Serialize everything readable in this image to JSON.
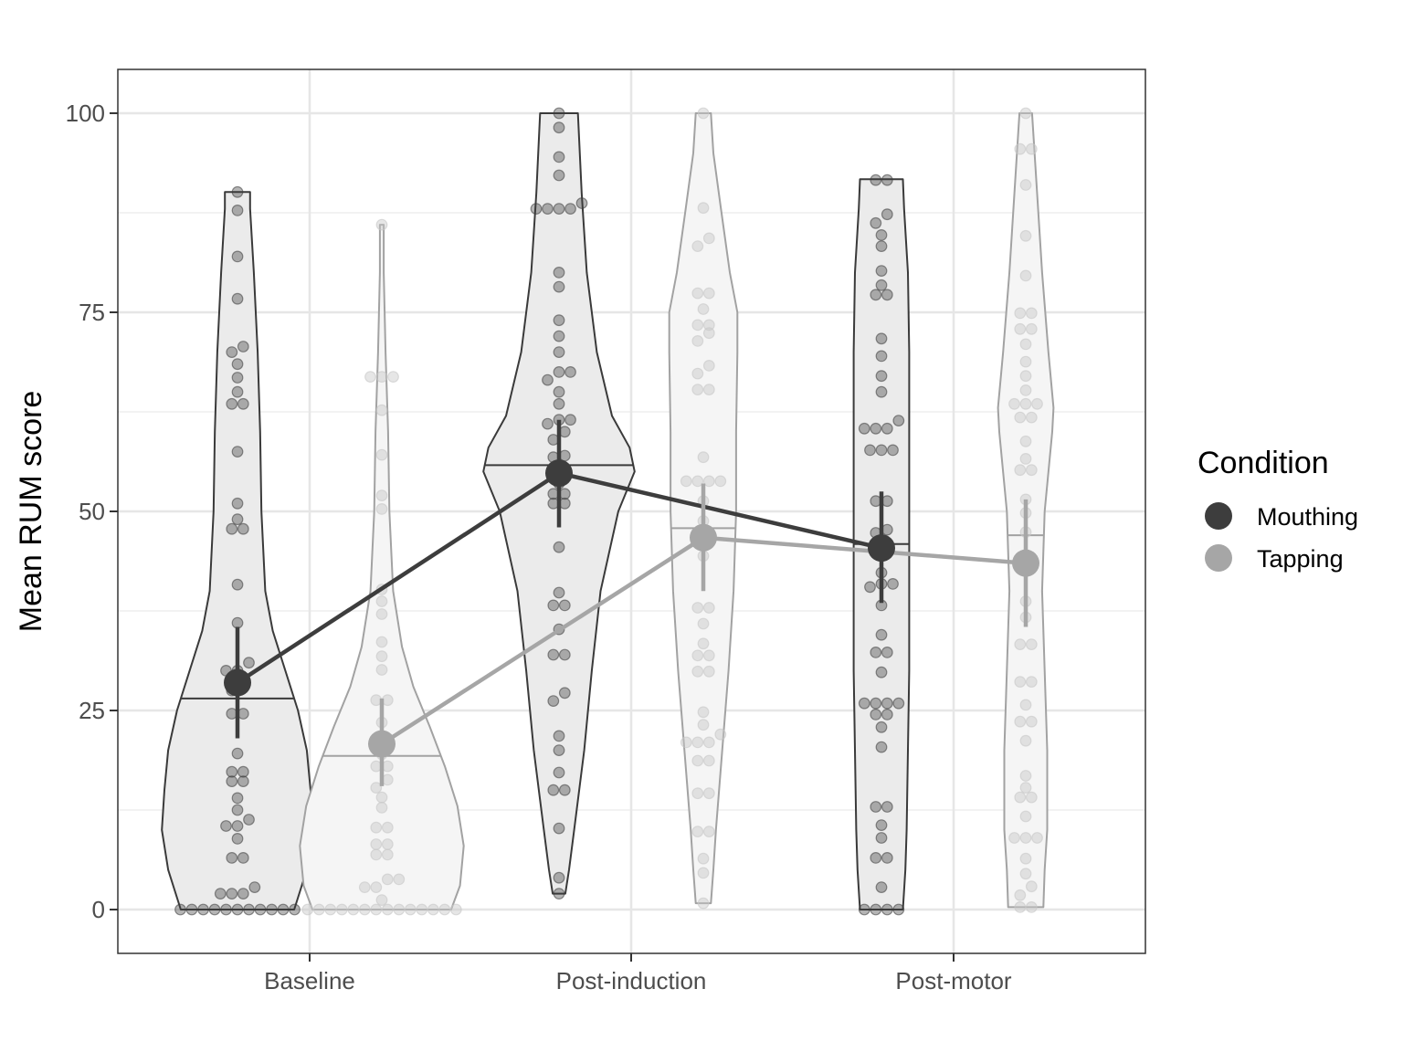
{
  "chart_data": {
    "type": "violin",
    "xlabel": "",
    "ylabel": "Mean RUM score",
    "ylim": [
      -5.5,
      105.5
    ],
    "y_ticks": [
      0,
      25,
      50,
      75,
      100
    ],
    "y_tick_labels": [
      "0",
      "25",
      "50",
      "75",
      "100"
    ],
    "categories": [
      "Baseline",
      "Post-induction",
      "Post-motor"
    ],
    "grid": true,
    "legend": {
      "title": "Condition",
      "position": "right"
    },
    "series": [
      {
        "name": "Mouthing",
        "color": "#3d3d3d",
        "point_color": "#3d3d3d",
        "violin_fill": "#ebebeb",
        "violin_stroke": "#3a3a3a",
        "means": [
          28.5,
          54.8,
          45.4
        ],
        "ci_low": [
          21.5,
          48.0,
          38.5
        ],
        "ci_high": [
          35.5,
          61.5,
          52.5
        ],
        "medians": [
          26.5,
          55.8,
          45.9
        ],
        "range": [
          [
            0,
            90.1
          ],
          [
            2.0,
            100
          ],
          [
            0,
            91.7
          ]
        ],
        "violin_profiles": [
          [
            [
              0,
              0.45
            ],
            [
              5,
              0.55
            ],
            [
              10,
              0.6
            ],
            [
              15,
              0.58
            ],
            [
              20,
              0.55
            ],
            [
              25,
              0.48
            ],
            [
              30,
              0.38
            ],
            [
              35,
              0.28
            ],
            [
              40,
              0.22
            ],
            [
              50,
              0.19
            ],
            [
              60,
              0.18
            ],
            [
              70,
              0.16
            ],
            [
              80,
              0.13
            ],
            [
              88,
              0.1
            ],
            [
              90.1,
              0.1
            ]
          ],
          [
            [
              2,
              0.05
            ],
            [
              5,
              0.08
            ],
            [
              10,
              0.12
            ],
            [
              20,
              0.2
            ],
            [
              30,
              0.26
            ],
            [
              40,
              0.33
            ],
            [
              50,
              0.47
            ],
            [
              55,
              0.6
            ],
            [
              58,
              0.56
            ],
            [
              62,
              0.42
            ],
            [
              70,
              0.3
            ],
            [
              80,
              0.22
            ],
            [
              90,
              0.18
            ],
            [
              100,
              0.15
            ]
          ],
          [
            [
              0,
              0.17
            ],
            [
              5,
              0.19
            ],
            [
              10,
              0.2
            ],
            [
              20,
              0.21
            ],
            [
              30,
              0.22
            ],
            [
              40,
              0.22
            ],
            [
              50,
              0.22
            ],
            [
              60,
              0.22
            ],
            [
              70,
              0.22
            ],
            [
              80,
              0.21
            ],
            [
              88,
              0.18
            ],
            [
              91.7,
              0.17
            ]
          ]
        ],
        "points": [
          [
            0,
            0,
            0,
            0,
            0,
            0,
            0,
            0,
            0,
            0,
            0,
            2.0,
            2.0,
            2.0,
            2.8,
            6.5,
            6.5,
            8.9,
            10.5,
            10.5,
            11.3,
            12.5,
            14.0,
            16.1,
            16.1,
            17.3,
            17.3,
            19.6,
            24.6,
            24.6,
            27.5,
            28.5,
            30.0,
            30.0,
            31.0,
            36.0,
            40.8,
            47.8,
            47.8,
            49.0,
            51.0,
            57.5,
            63.5,
            63.5,
            65.0,
            66.8,
            68.5,
            70.0,
            70.7,
            76.7,
            82.0,
            87.8,
            90.1
          ],
          [
            2.0,
            4.0,
            10.2,
            15.0,
            15.0,
            17.2,
            20.0,
            21.8,
            26.2,
            27.2,
            32.0,
            32.0,
            35.2,
            38.2,
            38.2,
            39.8,
            45.5,
            51.0,
            51.0,
            52.2,
            52.2,
            53.5,
            55.0,
            55.0,
            56.8,
            57.0,
            59.0,
            60.0,
            61.0,
            61.5,
            61.5,
            63.5,
            65.0,
            66.5,
            67.5,
            67.5,
            70.0,
            72.0,
            74.0,
            78.2,
            80.0,
            88.0,
            88.0,
            88.0,
            88.0,
            88.7,
            92.2,
            94.5,
            98.2,
            100
          ],
          [
            0,
            0,
            0,
            0,
            2.8,
            6.5,
            6.5,
            9.0,
            10.6,
            12.9,
            12.9,
            20.4,
            22.9,
            24.5,
            24.5,
            25.9,
            25.9,
            25.9,
            25.9,
            29.8,
            32.3,
            32.3,
            34.5,
            38.2,
            40.5,
            40.9,
            40.9,
            42.3,
            45.2,
            47.3,
            47.7,
            51.3,
            51.3,
            57.7,
            57.7,
            57.7,
            60.4,
            60.4,
            60.4,
            61.4,
            65.0,
            67.0,
            69.5,
            71.7,
            77.2,
            77.2,
            78.4,
            80.2,
            83.3,
            84.7,
            86.2,
            87.3,
            91.6,
            91.6
          ]
        ]
      },
      {
        "name": "Tapping",
        "color": "#a6a6a6",
        "point_color": "#c8c8c8",
        "violin_fill": "#f5f5f5",
        "violin_stroke": "#a2a2a2",
        "means": [
          20.8,
          46.7,
          43.5
        ],
        "ci_low": [
          15.5,
          40.0,
          35.5
        ],
        "ci_high": [
          26.5,
          53.5,
          51.5
        ],
        "medians": [
          19.3,
          47.9,
          47.0
        ],
        "range": [
          [
            0,
            86.0
          ],
          [
            0.8,
            100
          ],
          [
            0.3,
            100
          ]
        ],
        "violin_profiles": [
          [
            [
              0,
              0.55
            ],
            [
              3,
              0.62
            ],
            [
              8,
              0.65
            ],
            [
              13,
              0.6
            ],
            [
              18,
              0.5
            ],
            [
              23,
              0.38
            ],
            [
              28,
              0.25
            ],
            [
              33,
              0.16
            ],
            [
              40,
              0.09
            ],
            [
              50,
              0.06
            ],
            [
              60,
              0.05
            ],
            [
              70,
              0.03
            ],
            [
              80,
              0.015
            ],
            [
              86,
              0.015
            ]
          ],
          [
            [
              0.8,
              0.06
            ],
            [
              5,
              0.08
            ],
            [
              10,
              0.1
            ],
            [
              20,
              0.15
            ],
            [
              30,
              0.2
            ],
            [
              40,
              0.24
            ],
            [
              50,
              0.26
            ],
            [
              60,
              0.26
            ],
            [
              70,
              0.27
            ],
            [
              75,
              0.27
            ],
            [
              80,
              0.21
            ],
            [
              88,
              0.14
            ],
            [
              95,
              0.08
            ],
            [
              100,
              0.06
            ]
          ],
          [
            [
              0.3,
              0.14
            ],
            [
              5,
              0.15
            ],
            [
              10,
              0.17
            ],
            [
              20,
              0.17
            ],
            [
              30,
              0.15
            ],
            [
              40,
              0.13
            ],
            [
              50,
              0.15
            ],
            [
              60,
              0.21
            ],
            [
              63,
              0.22
            ],
            [
              70,
              0.18
            ],
            [
              80,
              0.13
            ],
            [
              90,
              0.09
            ],
            [
              100,
              0.05
            ]
          ]
        ],
        "points": [
          [
            0,
            0,
            0,
            0,
            0,
            0,
            0,
            0,
            0,
            0,
            0,
            0,
            0,
            0,
            1.2,
            2.8,
            2.8,
            3.8,
            3.8,
            6.9,
            6.9,
            8.2,
            8.2,
            10.3,
            10.3,
            12.8,
            14.1,
            15.3,
            16.3,
            18.0,
            18.0,
            19.5,
            21.0,
            23.5,
            26.3,
            26.3,
            30.1,
            31.8,
            33.6,
            37.1,
            38.7,
            40.2,
            50.3,
            52.0,
            57.1,
            62.7,
            66.9,
            66.9,
            66.9,
            86.0
          ],
          [
            0.8,
            4.6,
            6.4,
            9.8,
            9.8,
            14.6,
            14.6,
            18.7,
            18.7,
            21.0,
            21.0,
            21.0,
            22.0,
            23.2,
            24.8,
            29.9,
            29.9,
            31.9,
            31.9,
            33.4,
            35.9,
            37.9,
            37.9,
            44.4,
            48.8,
            51.3,
            53.8,
            53.8,
            53.8,
            53.8,
            56.8,
            65.3,
            65.3,
            67.3,
            68.3,
            71.4,
            72.4,
            73.4,
            73.4,
            75.4,
            77.4,
            77.4,
            83.3,
            84.3,
            88.1,
            100
          ],
          [
            0.3,
            0.3,
            1.8,
            2.9,
            4.5,
            6.4,
            9.0,
            9.0,
            9.0,
            11.7,
            14.1,
            14.1,
            15.3,
            16.8,
            21.2,
            23.6,
            23.6,
            25.7,
            28.6,
            28.6,
            33.3,
            33.3,
            36.7,
            38.7,
            43.6,
            47.4,
            49.8,
            51.5,
            55.2,
            55.2,
            56.6,
            58.8,
            61.8,
            61.8,
            63.5,
            63.5,
            63.5,
            65.2,
            67.0,
            68.8,
            71.0,
            72.9,
            72.9,
            74.9,
            74.9,
            79.6,
            84.6,
            91.0,
            95.5,
            95.5,
            100
          ]
        ]
      }
    ]
  }
}
